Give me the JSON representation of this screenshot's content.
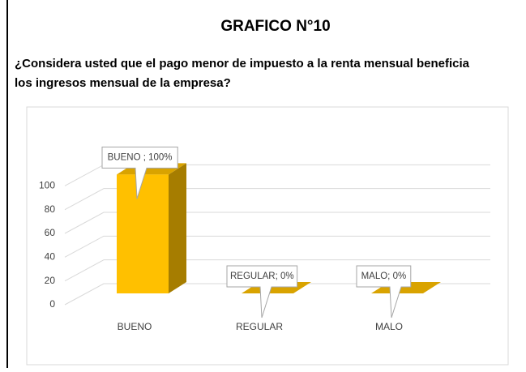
{
  "chart_data": {
    "type": "bar3d",
    "title": "GRAFICO N°10",
    "subtitle": [
      "¿Considera usted que el pago menor de impuesto a la renta mensual beneficia",
      "los ingresos mensual de la empresa?"
    ],
    "categories": [
      "BUENO",
      "REGULAR",
      "MALO"
    ],
    "values": [
      100,
      0,
      0
    ],
    "value_labels": [
      "BUENO ; 100%",
      "REGULAR; 0%",
      "MALO; 0%"
    ],
    "color": "#FFC000",
    "ylim": [
      0,
      120
    ],
    "yticks": [
      0,
      20,
      40,
      60,
      80,
      100
    ],
    "grid": true
  }
}
